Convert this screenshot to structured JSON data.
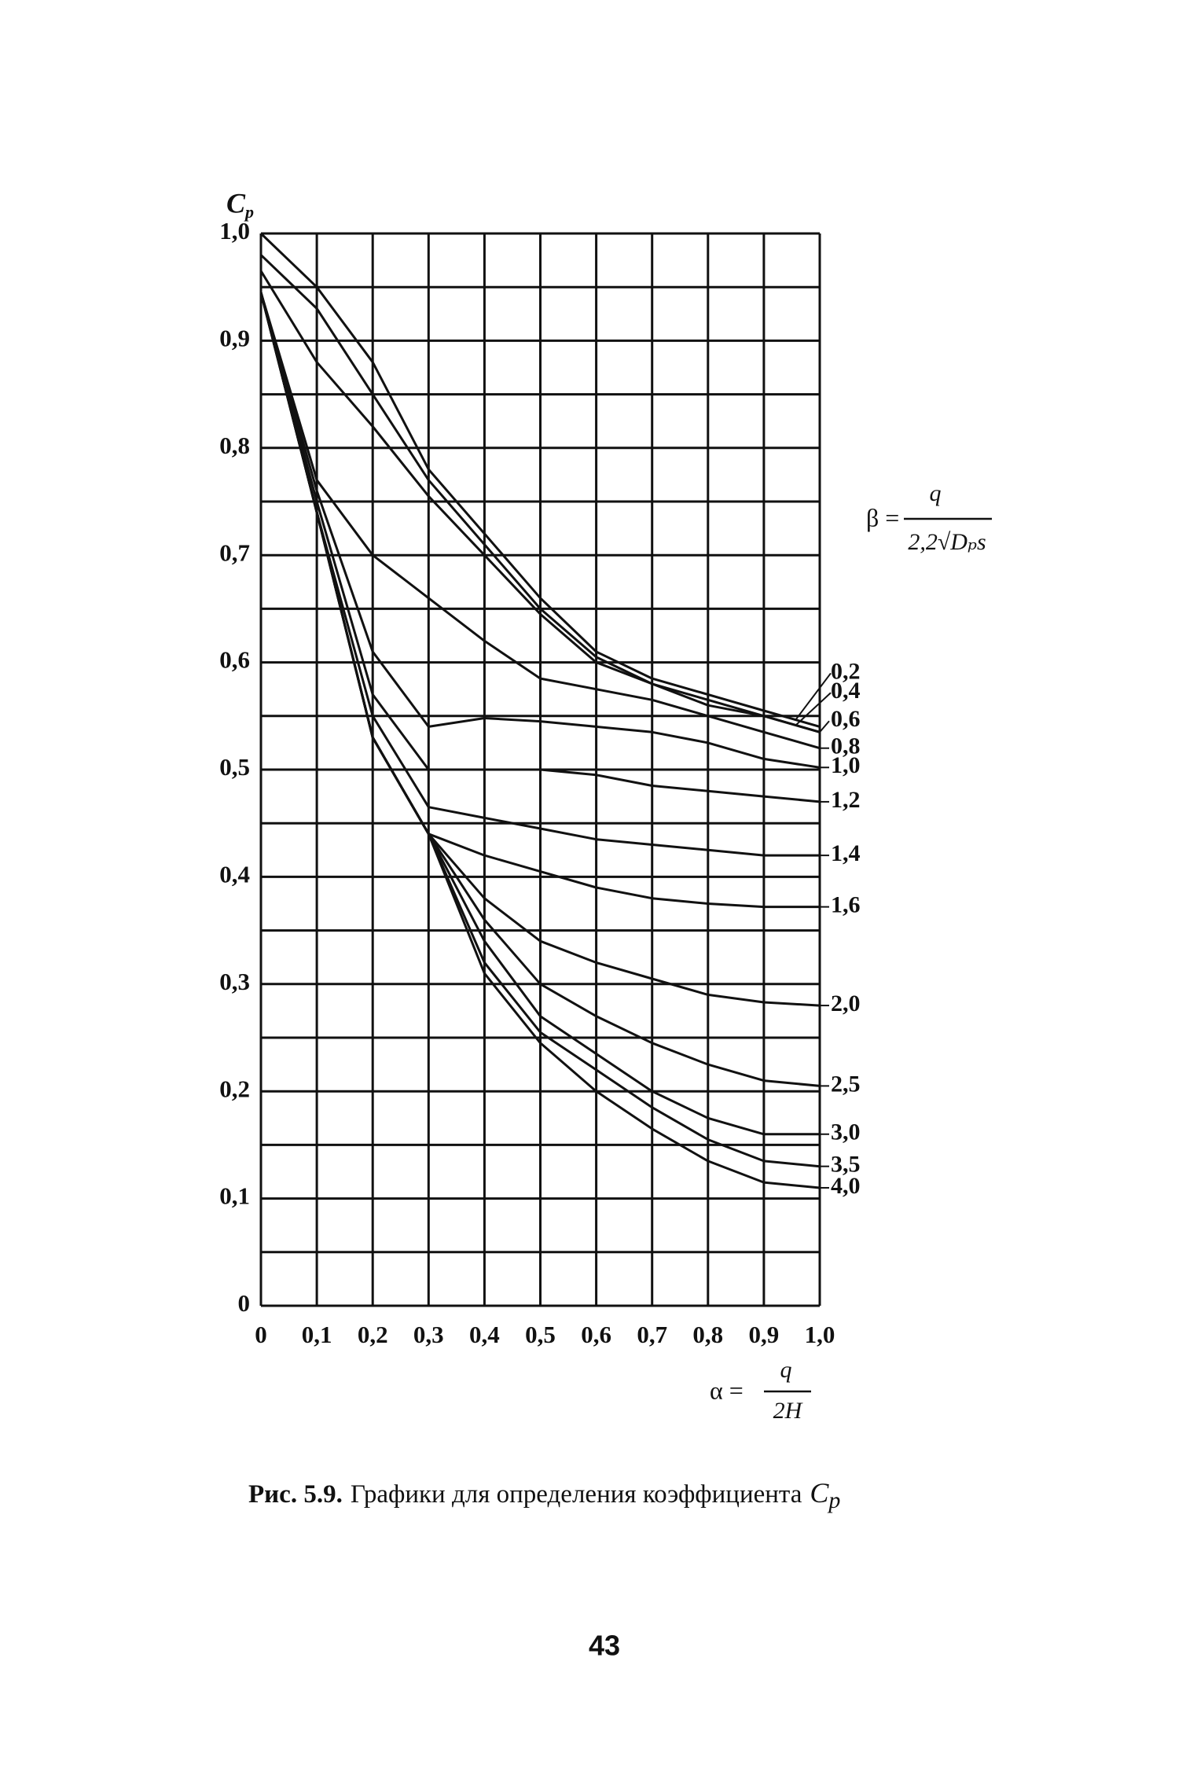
{
  "chart_data": {
    "type": "line",
    "y_label": "C",
    "y_label_sub": "p",
    "beta_label": "β =",
    "beta_numerator": "q",
    "beta_denominator": "2,2√Dₚs",
    "alpha_label": "α =",
    "alpha_numerator": "q",
    "alpha_denominator": "2H",
    "x": [
      0,
      0.1,
      0.2,
      0.3,
      0.4,
      0.5,
      0.6,
      0.7,
      0.8,
      0.9,
      1.0
    ],
    "xlim": [
      0,
      1.0
    ],
    "xticks": [
      {
        "value": 0,
        "label": "0"
      },
      {
        "value": 0.1,
        "label": "0,1"
      },
      {
        "value": 0.2,
        "label": "0,2"
      },
      {
        "value": 0.3,
        "label": "0,3"
      },
      {
        "value": 0.4,
        "label": "0,4"
      },
      {
        "value": 0.5,
        "label": "0,5"
      },
      {
        "value": 0.6,
        "label": "0,6"
      },
      {
        "value": 0.7,
        "label": "0,7"
      },
      {
        "value": 0.8,
        "label": "0,8"
      },
      {
        "value": 0.9,
        "label": "0,9"
      },
      {
        "value": 1.0,
        "label": "1,0"
      }
    ],
    "ylim": [
      0,
      1.0
    ],
    "yticks": [
      0,
      {
        "value": 0.1,
        "label": "0,1"
      },
      {
        "value": 0.2,
        "label": "0,2"
      },
      {
        "value": 0.3,
        "label": "0,3"
      },
      {
        "value": 0.4,
        "label": "0,4"
      },
      {
        "value": 0.5,
        "label": "0,5"
      },
      {
        "value": 0.6,
        "label": "0,6"
      },
      {
        "value": 0.7,
        "label": "0,7"
      },
      {
        "value": 0.8,
        "label": "0,8"
      },
      {
        "value": 0.9,
        "label": "0,9"
      },
      {
        "value": 1.0,
        "label": "1,0"
      }
    ],
    "yminorticks": [
      0.05,
      0.15,
      0.25,
      0.35,
      0.45,
      0.55,
      0.65,
      0.75,
      0.85,
      0.95
    ],
    "grid": true,
    "color": "#111111",
    "series": [
      {
        "name": "0,2",
        "values": [
          1.0,
          0.95,
          0.88,
          0.78,
          0.72,
          0.66,
          0.61,
          0.585,
          0.57,
          0.555,
          0.54
        ]
      },
      {
        "name": "0,4",
        "values": [
          0.98,
          0.93,
          0.85,
          0.77,
          0.71,
          0.65,
          0.605,
          0.58,
          0.565,
          0.55,
          0.535
        ]
      },
      {
        "name": "0,6",
        "values": [
          0.965,
          0.88,
          0.82,
          0.755,
          0.7,
          0.645,
          0.6,
          0.58,
          0.56,
          0.55,
          0.535
        ]
      },
      {
        "name": "0,8",
        "values": [
          0.945,
          0.77,
          0.7,
          0.66,
          0.62,
          0.585,
          0.575,
          0.565,
          0.55,
          0.535,
          0.52
        ]
      },
      {
        "name": "1,0",
        "values": [
          0.945,
          0.76,
          0.61,
          0.54,
          0.548,
          0.545,
          0.54,
          0.535,
          0.525,
          0.51,
          0.502
        ]
      },
      {
        "name": "1,2",
        "values": [
          0.945,
          0.75,
          0.57,
          0.5,
          0.5,
          0.5,
          0.495,
          0.485,
          0.48,
          0.475,
          0.47
        ]
      },
      {
        "name": "1,4",
        "values": [
          0.945,
          0.74,
          0.55,
          0.465,
          0.455,
          0.445,
          0.435,
          0.43,
          0.425,
          0.42,
          0.42
        ]
      },
      {
        "name": "1,6",
        "values": [
          0.945,
          0.74,
          0.53,
          0.44,
          0.42,
          0.405,
          0.39,
          0.38,
          0.375,
          0.372,
          0.372
        ]
      },
      {
        "name": "2,0",
        "values": [
          0.945,
          0.74,
          0.53,
          0.44,
          0.38,
          0.34,
          0.32,
          0.305,
          0.29,
          0.283,
          0.28
        ]
      },
      {
        "name": "2,5",
        "values": [
          0.945,
          0.74,
          0.53,
          0.44,
          0.36,
          0.3,
          0.27,
          0.245,
          0.225,
          0.21,
          0.205
        ]
      },
      {
        "name": "3,0",
        "values": [
          0.945,
          0.74,
          0.53,
          0.44,
          0.34,
          0.27,
          0.235,
          0.2,
          0.175,
          0.16,
          0.16
        ]
      },
      {
        "name": "3,5",
        "values": [
          0.945,
          0.74,
          0.53,
          0.44,
          0.32,
          0.255,
          0.22,
          0.185,
          0.155,
          0.135,
          0.13
        ]
      },
      {
        "name": "4,0",
        "values": [
          0.945,
          0.74,
          0.53,
          0.44,
          0.31,
          0.245,
          0.2,
          0.165,
          0.135,
          0.115,
          0.11
        ]
      }
    ]
  },
  "caption": {
    "label": "Рис. 5.9.",
    "text": "Графики для определения коэффициента",
    "symbol": "C",
    "symbol_sub": "p"
  },
  "page_number": "43"
}
